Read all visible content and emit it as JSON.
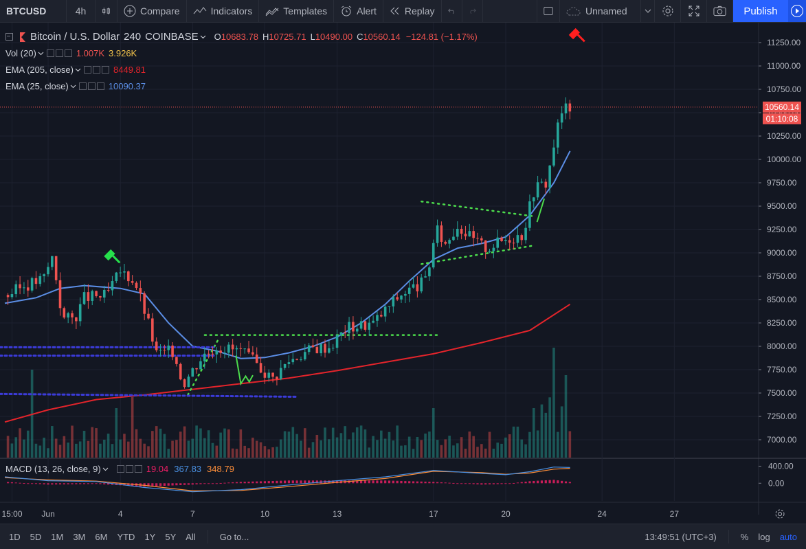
{
  "toolbar": {
    "symbol": "BTCUSD",
    "interval": "4h",
    "compare": "Compare",
    "indicators": "Indicators",
    "templates": "Templates",
    "alert": "Alert",
    "replay": "Replay",
    "layout_name": "Unnamed",
    "publish": "Publish"
  },
  "legend": {
    "title": "Bitcoin / U.S. Dollar",
    "interval": "240",
    "exchange": "COINBASE",
    "o_label": "O",
    "o": "10683.78",
    "h_label": "H",
    "h": "10725.71",
    "l_label": "L",
    "l": "10490.00",
    "c_label": "C",
    "c": "10560.14",
    "change": "−124.81 (−1.17%)",
    "vol_name": "Vol (20)",
    "vol_val1": "1.007K",
    "vol_val2": "3.926K",
    "ema205_name": "EMA (205, close)",
    "ema205_val": "8449.81",
    "ema25_name": "EMA (25, close)",
    "ema25_val": "10090.37",
    "macd_name": "MACD (13, 26, close, 9)",
    "macd_hist": "19.04",
    "macd_line": "367.83",
    "macd_signal": "348.79"
  },
  "price_tags": {
    "last": "10560.14",
    "countdown": "01:10:08"
  },
  "bottom": {
    "ranges": [
      "1D",
      "5D",
      "1M",
      "3M",
      "6M",
      "YTD",
      "1Y",
      "5Y",
      "All"
    ],
    "goto": "Go to...",
    "time": "13:49:51 (UTC+3)",
    "percent": "%",
    "log": "log",
    "auto": "auto"
  },
  "colors": {
    "up": "#26a69a",
    "down": "#ef5350",
    "ema25": "#5b8ee6",
    "ema205": "#e3242b",
    "bg": "#131722"
  },
  "chart_data": {
    "type": "candlestick",
    "price_axis": {
      "ylim": [
        6800,
        11350
      ],
      "ticks": [
        7000,
        7250,
        7500,
        7750,
        8000,
        8250,
        8500,
        8750,
        9000,
        9250,
        9500,
        9750,
        10000,
        10250,
        10500,
        10750,
        11000,
        11250
      ]
    },
    "macd_axis": {
      "ticks": [
        "400.00",
        "0.00"
      ]
    },
    "x_ticks": [
      "15:00",
      "Jun",
      "4",
      "7",
      "10",
      "13",
      "17",
      "20",
      "24",
      "27"
    ],
    "x_tick_days": [
      -0.5,
      1,
      4,
      7,
      10,
      13,
      17,
      20,
      24,
      27
    ],
    "x_range_days": [
      -1.0,
      30.5
    ],
    "candle_days": [
      -0.67,
      22.67
    ],
    "close_path": [
      [
        -0.67,
        8550
      ],
      [
        0,
        8650
      ],
      [
        0.8,
        8720
      ],
      [
        1.2,
        8980
      ],
      [
        1.4,
        8600
      ],
      [
        1.6,
        8300
      ],
      [
        2.1,
        8300
      ],
      [
        2.5,
        8520
      ],
      [
        3.4,
        8540
      ],
      [
        4,
        8800
      ],
      [
        4.6,
        8700
      ],
      [
        5.1,
        8300
      ],
      [
        5.5,
        7920
      ],
      [
        6.2,
        7950
      ],
      [
        6.6,
        7600
      ],
      [
        7.4,
        7900
      ],
      [
        8,
        8000
      ],
      [
        9,
        7950
      ],
      [
        9.7,
        7800
      ],
      [
        10.3,
        7650
      ],
      [
        11,
        7850
      ],
      [
        12,
        7980
      ],
      [
        12.7,
        8000
      ],
      [
        13.4,
        8200
      ],
      [
        14.5,
        8250
      ],
      [
        15.6,
        8550
      ],
      [
        16.7,
        8700
      ],
      [
        17.1,
        9250
      ],
      [
        17.5,
        9100
      ],
      [
        18,
        9300
      ],
      [
        18.6,
        9150
      ],
      [
        19.2,
        9050
      ],
      [
        20,
        9150
      ],
      [
        20.7,
        9200
      ],
      [
        21.2,
        9700
      ],
      [
        21.7,
        9750
      ],
      [
        22.1,
        10300
      ],
      [
        22.4,
        10550
      ],
      [
        22.67,
        10560
      ]
    ],
    "ema25": [
      [
        -0.8,
        8460
      ],
      [
        0.5,
        8520
      ],
      [
        1.5,
        8620
      ],
      [
        2.5,
        8650
      ],
      [
        4,
        8620
      ],
      [
        5,
        8560
      ],
      [
        6,
        8250
      ],
      [
        7,
        8000
      ],
      [
        8,
        7950
      ],
      [
        9,
        7870
      ],
      [
        10,
        7880
      ],
      [
        11,
        7930
      ],
      [
        12,
        8000
      ],
      [
        13,
        8100
      ],
      [
        14,
        8250
      ],
      [
        15,
        8450
      ],
      [
        16,
        8700
      ],
      [
        17,
        8930
      ],
      [
        18,
        9050
      ],
      [
        19,
        9100
      ],
      [
        20,
        9170
      ],
      [
        21,
        9400
      ],
      [
        22,
        9750
      ],
      [
        22.67,
        10090
      ]
    ],
    "ema205": [
      [
        -0.8,
        7190
      ],
      [
        1,
        7320
      ],
      [
        3,
        7430
      ],
      [
        5,
        7480
      ],
      [
        7,
        7540
      ],
      [
        9,
        7600
      ],
      [
        11,
        7660
      ],
      [
        13,
        7740
      ],
      [
        15,
        7830
      ],
      [
        17,
        7920
      ],
      [
        19,
        8040
      ],
      [
        21,
        8170
      ],
      [
        22.67,
        8450
      ]
    ],
    "trendlines": [
      {
        "points": [
          [
            7.5,
            8120
          ],
          [
            17.2,
            8120
          ]
        ]
      },
      {
        "points": [
          [
            16.5,
            9550
          ],
          [
            21.2,
            9390
          ]
        ]
      },
      {
        "points": [
          [
            16.5,
            8880
          ],
          [
            21.2,
            9080
          ]
        ]
      },
      {
        "points": [
          [
            6.8,
            7480
          ],
          [
            8.1,
            8090
          ]
        ]
      },
      {
        "points": [
          [
            -1,
            7490
          ],
          [
            11.3,
            7460
          ]
        ],
        "style": "blue"
      },
      {
        "points": [
          [
            -1,
            7990
          ],
          [
            7.9,
            7990
          ]
        ],
        "style": "blue"
      },
      {
        "points": [
          [
            -1,
            7900
          ],
          [
            7.9,
            7900
          ]
        ],
        "style": "blue"
      }
    ],
    "volume": {
      "max_label": "3.926K",
      "spikes": [
        [
          0.3,
          0.8
        ],
        [
          3.8,
          0.45
        ],
        [
          4.5,
          0.55
        ],
        [
          17,
          0.45
        ],
        [
          21.2,
          0.45
        ],
        [
          22,
          1.0
        ],
        [
          22.5,
          0.75
        ]
      ]
    },
    "macd": {
      "ylim": [
        -350,
        520
      ],
      "macd_line": [
        [
          -0.8,
          150
        ],
        [
          1,
          60
        ],
        [
          3,
          40
        ],
        [
          5,
          -100
        ],
        [
          7,
          -200
        ],
        [
          9,
          -150
        ],
        [
          11,
          -40
        ],
        [
          13,
          60
        ],
        [
          15,
          150
        ],
        [
          17,
          300
        ],
        [
          19,
          230
        ],
        [
          20,
          200
        ],
        [
          21,
          270
        ],
        [
          22,
          380
        ],
        [
          22.67,
          368
        ]
      ],
      "signal": [
        [
          -0.8,
          130
        ],
        [
          1,
          80
        ],
        [
          3,
          50
        ],
        [
          5,
          -50
        ],
        [
          7,
          -180
        ],
        [
          9,
          -170
        ],
        [
          11,
          -80
        ],
        [
          13,
          20
        ],
        [
          15,
          110
        ],
        [
          17,
          280
        ],
        [
          19,
          250
        ],
        [
          20,
          210
        ],
        [
          21,
          240
        ],
        [
          22,
          330
        ],
        [
          22.67,
          349
        ]
      ]
    }
  }
}
